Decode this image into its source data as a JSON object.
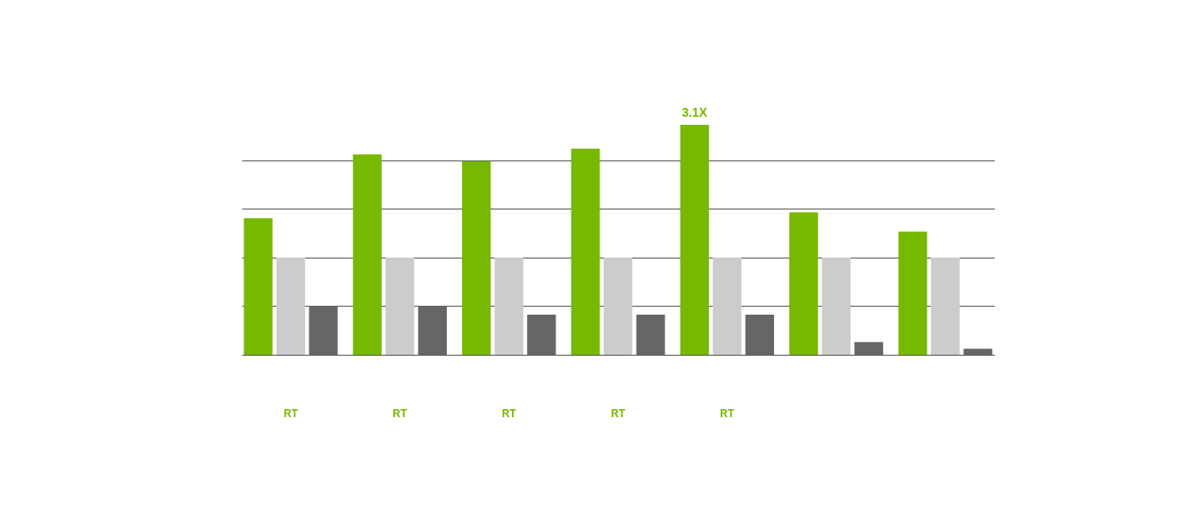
{
  "chart_data": {
    "type": "bar",
    "categories": [
      "RT",
      "RT",
      "RT",
      "RT",
      "RT",
      null,
      null
    ],
    "ylim": [
      0,
      3.1
    ],
    "yticks": [
      {
        "value": 0.655,
        "label": null
      },
      {
        "value": 1.31,
        "label": null
      },
      {
        "value": 1.965,
        "label": null
      },
      {
        "value": 2.62,
        "label": null
      }
    ],
    "grid": "y",
    "tick_labels": "x",
    "series": [
      {
        "color": "#76b900",
        "values": [
          1.84,
          2.7,
          2.61,
          2.78,
          3.1,
          1.92,
          1.66
        ],
        "value_labels": [
          null,
          null,
          null,
          null,
          "3.1X",
          null,
          null
        ]
      },
      {
        "color": "#cccccc",
        "values": [
          1.31,
          1.31,
          1.31,
          1.31,
          1.31,
          1.31,
          1.31
        ]
      },
      {
        "color": "#666666",
        "values": [
          0.66,
          0.66,
          0.54,
          0.54,
          0.54,
          0.17,
          0.08
        ]
      }
    ]
  }
}
